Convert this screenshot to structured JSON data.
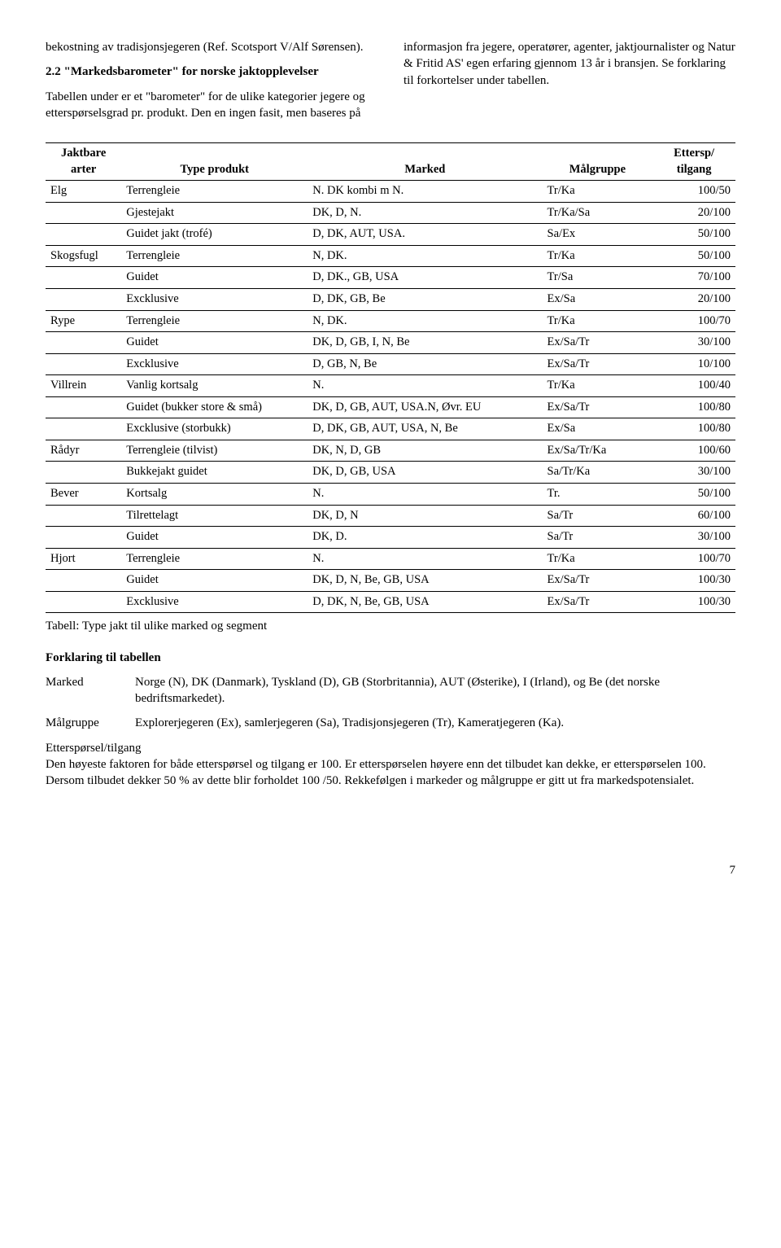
{
  "left_col": {
    "p1": "bekostning av tradisjonsjegeren (Ref. Scotsport V/Alf Sørensen).",
    "head": "2.2 \"Markedsbarometer\" for norske jaktopplevelser",
    "p2": "Tabellen under er et \"barometer\" for de ulike kategorier jegere og etterspørselsgrad pr. produkt. Den en ingen fasit, men baseres på"
  },
  "right_col": {
    "p1": "informasjon fra jegere, operatører, agenter, jaktjournalister og Natur & Fritid AS' egen erfaring gjennom 13 år i bransjen. Se forklaring til forkortelser under tabellen."
  },
  "table": {
    "headers": {
      "arter": "Jaktbare arter",
      "produkt": "Type produkt",
      "marked": "Marked",
      "malgruppe": "Målgruppe",
      "ettersp": "Ettersp/ tilgang"
    },
    "rows": [
      {
        "art": "Elg",
        "prod": "Terrengleie",
        "mark": "N. DK kombi m N.",
        "mg": "Tr/Ka",
        "et": "100/50"
      },
      {
        "art": "",
        "prod": "Gjestejakt",
        "mark": "DK, D, N.",
        "mg": "Tr/Ka/Sa",
        "et": "20/100"
      },
      {
        "art": "",
        "prod": "Guidet jakt (trofé)",
        "mark": "D, DK,  AUT, USA.",
        "mg": "Sa/Ex",
        "et": "50/100"
      },
      {
        "art": "Skogsfugl",
        "prod": "Terrengleie",
        "mark": "N, DK.",
        "mg": "Tr/Ka",
        "et": "50/100"
      },
      {
        "art": "",
        "prod": "Guidet",
        "mark": "D, DK., GB, USA",
        "mg": "Tr/Sa",
        "et": "70/100"
      },
      {
        "art": "",
        "prod": "Excklusive",
        "mark": "D, DK, GB, Be",
        "mg": "Ex/Sa",
        "et": "20/100"
      },
      {
        "art": "Rype",
        "prod": "Terrengleie",
        "mark": "N, DK.",
        "mg": "Tr/Ka",
        "et": "100/70"
      },
      {
        "art": "",
        "prod": "Guidet",
        "mark": "DK, D, GB, I, N, Be",
        "mg": "Ex/Sa/Tr",
        "et": "30/100"
      },
      {
        "art": "",
        "prod": "Excklusive",
        "mark": "D, GB, N, Be",
        "mg": "Ex/Sa/Tr",
        "et": "10/100"
      },
      {
        "art": "Villrein",
        "prod": "Vanlig kortsalg",
        "mark": "N.",
        "mg": "Tr/Ka",
        "et": "100/40"
      },
      {
        "art": "",
        "prod": "Guidet (bukker store & små)",
        "mark": "DK, D, GB, AUT, USA.N, Øvr. EU",
        "mg": "Ex/Sa/Tr",
        "et": "100/80"
      },
      {
        "art": "",
        "prod": "Excklusive (storbukk)",
        "mark": "D, DK, GB, AUT, USA, N, Be",
        "mg": "Ex/Sa",
        "et": "100/80"
      },
      {
        "art": "Rådyr",
        "prod": "Terrengleie (tilvist)",
        "mark": "DK, N, D, GB",
        "mg": "Ex/Sa/Tr/Ka",
        "et": "100/60"
      },
      {
        "art": "",
        "prod": "Bukkejakt guidet",
        "mark": "DK, D, GB, USA",
        "mg": "Sa/Tr/Ka",
        "et": "30/100"
      },
      {
        "art": "Bever",
        "prod": "Kortsalg",
        "mark": "N.",
        "mg": "Tr.",
        "et": "50/100"
      },
      {
        "art": "",
        "prod": "Tilrettelagt",
        "mark": "DK, D, N",
        "mg": "Sa/Tr",
        "et": "60/100"
      },
      {
        "art": "",
        "prod": "Guidet",
        "mark": "DK, D.",
        "mg": "Sa/Tr",
        "et": "30/100"
      },
      {
        "art": "Hjort",
        "prod": "Terrengleie",
        "mark": "N.",
        "mg": "Tr/Ka",
        "et": "100/70"
      },
      {
        "art": "",
        "prod": "Guidet",
        "mark": "DK, D, N, Be, GB, USA",
        "mg": "Ex/Sa/Tr",
        "et": "100/30"
      },
      {
        "art": "",
        "prod": "Excklusive",
        "mark": "D, DK, N, Be, GB, USA",
        "mg": "Ex/Sa/Tr",
        "et": "100/30"
      }
    ]
  },
  "table_caption": "Tabell: Type jakt til ulike marked og segment",
  "forklaring_head": "Forklaring til tabellen",
  "defs": {
    "marked_key": "Marked",
    "marked_val": "Norge (N), DK (Danmark), Tyskland (D), GB (Storbritannia), AUT (Østerike), I (Irland), og Be (det norske bedriftsmarkedet).",
    "malgruppe_key": "Målgruppe",
    "malgruppe_val": "Explorerjegeren (Ex), samlerjegeren (Sa), Tradisjonsjegeren (Tr), Kameratjegeren (Ka)."
  },
  "ettersp": {
    "head": "Etterspørsel/tilgang",
    "body": "Den høyeste faktoren for både etterspørsel og tilgang er 100. Er etterspørselen høyere enn det tilbudet kan dekke, er etterspørselen 100. Dersom tilbudet dekker 50 % av dette blir forholdet 100 /50. Rekkefølgen i markeder og målgruppe er gitt ut fra markedspotensialet."
  },
  "page_number": "7"
}
